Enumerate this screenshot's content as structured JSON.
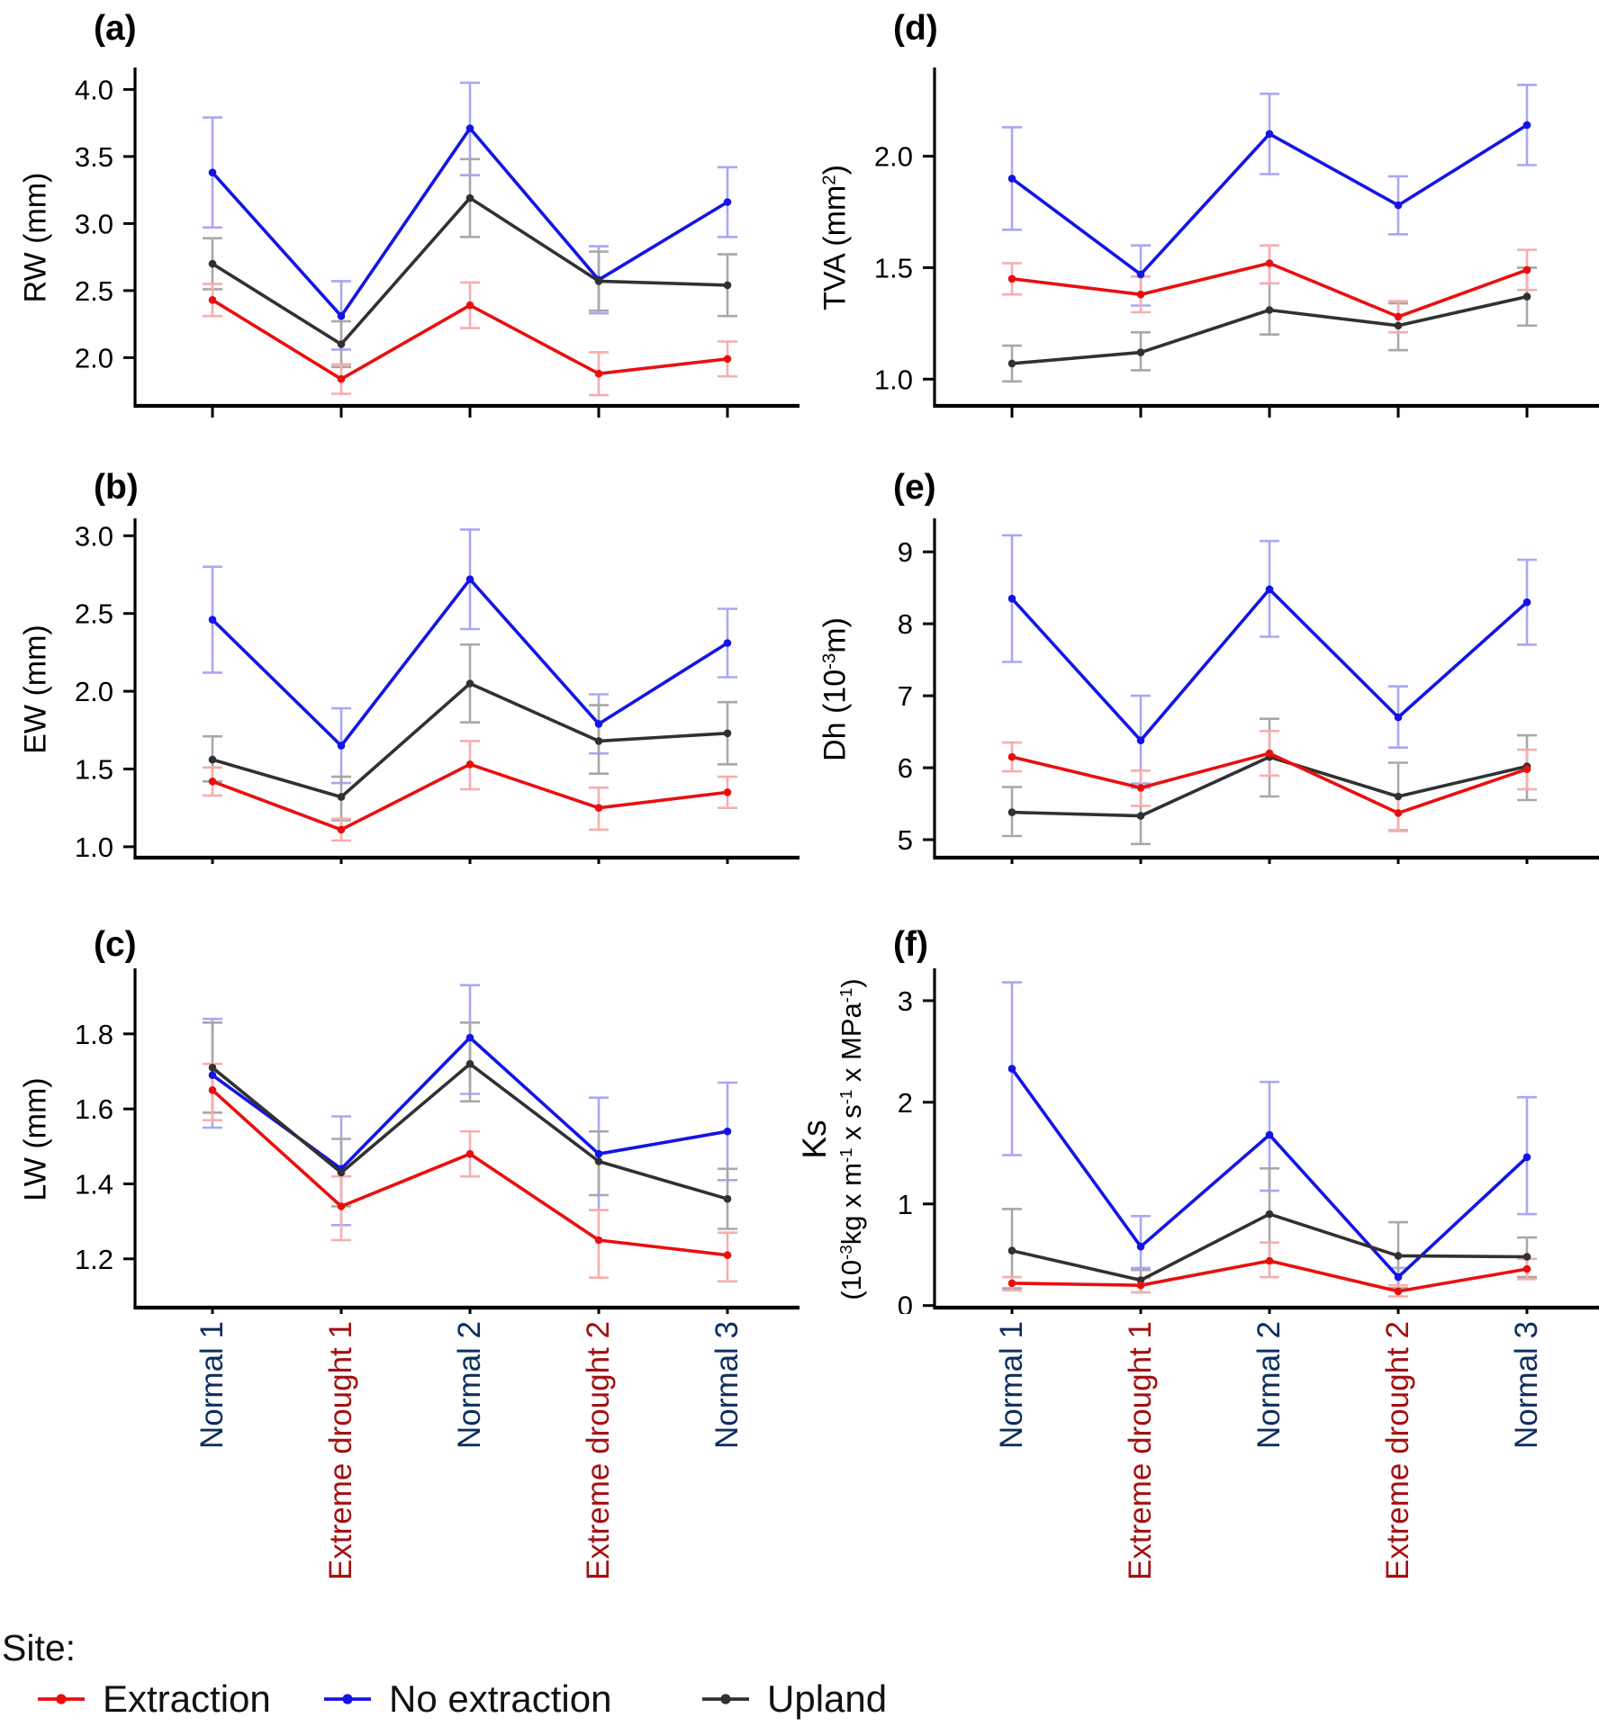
{
  "figure": {
    "site_legend_title": "Site:",
    "legend": [
      {
        "site": "extraction",
        "label": "Extraction"
      },
      {
        "site": "no_extraction",
        "label": "No extraction"
      },
      {
        "site": "upland",
        "label": "Upland"
      }
    ]
  },
  "colors": {
    "sites": {
      "extraction": {
        "line": "#ea0f0f",
        "error": "#f6aeae"
      },
      "no_extraction": {
        "line": "#1414e6",
        "error": "#a8a8f4"
      },
      "upland": {
        "line": "#313131",
        "error": "#a8a8a8"
      }
    },
    "category_label": {
      "normal": "#0e2e5e",
      "drought": "#a31111"
    },
    "axis": "#000000"
  },
  "categories": [
    {
      "label": "Normal 1",
      "type": "normal"
    },
    {
      "label": "Extreme drought 1",
      "type": "drought"
    },
    {
      "label": "Normal 2",
      "type": "normal"
    },
    {
      "label": "Extreme drought 2",
      "type": "drought"
    },
    {
      "label": "Normal 3",
      "type": "normal"
    }
  ],
  "chart_data": [
    {
      "key": "a",
      "panel_label": "(a)",
      "type": "line",
      "ylabel_text": "RW (mm)",
      "ylabel_lines": [
        [
          {
            "t": "RW (mm)"
          }
        ]
      ],
      "ylim": [
        1.64,
        4.15
      ],
      "yticks": [
        {
          "v": 2.0,
          "label": "2.0"
        },
        {
          "v": 2.5,
          "label": "2.5"
        },
        {
          "v": 3.0,
          "label": "3.0"
        },
        {
          "v": 3.5,
          "label": "3.5"
        },
        {
          "v": 4.0,
          "label": "4.0"
        }
      ],
      "series": [
        {
          "site": "extraction",
          "name": "Extraction",
          "values": [
            2.43,
            1.84,
            2.39,
            1.88,
            1.99
          ],
          "err_low": [
            2.31,
            1.73,
            2.22,
            1.72,
            1.86
          ],
          "err_high": [
            2.55,
            1.95,
            2.56,
            2.04,
            2.12
          ]
        },
        {
          "site": "no_extraction",
          "name": "No extraction",
          "values": [
            3.38,
            2.31,
            3.71,
            2.58,
            3.16
          ],
          "err_low": [
            2.97,
            2.06,
            3.36,
            2.33,
            2.9
          ],
          "err_high": [
            3.79,
            2.57,
            4.05,
            2.83,
            3.42
          ]
        },
        {
          "site": "upland",
          "name": "Upland",
          "values": [
            2.7,
            2.1,
            3.19,
            2.57,
            2.54
          ],
          "err_low": [
            2.51,
            1.93,
            2.9,
            2.35,
            2.31
          ],
          "err_high": [
            2.89,
            2.27,
            3.48,
            2.79,
            2.77
          ]
        }
      ]
    },
    {
      "key": "b",
      "panel_label": "(b)",
      "type": "line",
      "ylabel_text": "EW (mm)",
      "ylabel_lines": [
        [
          {
            "t": "EW (mm)"
          }
        ]
      ],
      "ylim": [
        0.93,
        3.1
      ],
      "yticks": [
        {
          "v": 1.0,
          "label": "1.0"
        },
        {
          "v": 1.5,
          "label": "1.5"
        },
        {
          "v": 2.0,
          "label": "2.0"
        },
        {
          "v": 2.5,
          "label": "2.5"
        },
        {
          "v": 3.0,
          "label": "3.0"
        }
      ],
      "series": [
        {
          "site": "extraction",
          "name": "Extraction",
          "values": [
            1.42,
            1.11,
            1.53,
            1.25,
            1.35
          ],
          "err_low": [
            1.33,
            1.04,
            1.37,
            1.11,
            1.25
          ],
          "err_high": [
            1.51,
            1.18,
            1.68,
            1.38,
            1.45
          ]
        },
        {
          "site": "no_extraction",
          "name": "No extraction",
          "values": [
            2.46,
            1.65,
            2.72,
            1.79,
            2.31
          ],
          "err_low": [
            2.12,
            1.41,
            2.4,
            1.6,
            2.09
          ],
          "err_high": [
            2.8,
            1.89,
            3.04,
            1.98,
            2.53
          ]
        },
        {
          "site": "upland",
          "name": "Upland",
          "values": [
            1.56,
            1.32,
            2.05,
            1.68,
            1.73
          ],
          "err_low": [
            1.42,
            1.17,
            1.8,
            1.47,
            1.53
          ],
          "err_high": [
            1.71,
            1.45,
            2.3,
            1.91,
            1.93
          ]
        }
      ]
    },
    {
      "key": "c",
      "panel_label": "(c)",
      "type": "line",
      "ylabel_text": "LW (mm)",
      "ylabel_lines": [
        [
          {
            "t": "LW (mm)"
          }
        ]
      ],
      "ylim": [
        1.07,
        1.97
      ],
      "yticks": [
        {
          "v": 1.2,
          "label": "1.2"
        },
        {
          "v": 1.4,
          "label": "1.4"
        },
        {
          "v": 1.6,
          "label": "1.6"
        },
        {
          "v": 1.8,
          "label": "1.8"
        }
      ],
      "series": [
        {
          "site": "extraction",
          "name": "Extraction",
          "values": [
            1.65,
            1.34,
            1.48,
            1.25,
            1.21
          ],
          "err_low": [
            1.57,
            1.25,
            1.42,
            1.15,
            1.14
          ],
          "err_high": [
            1.72,
            1.42,
            1.54,
            1.33,
            1.27
          ]
        },
        {
          "site": "no_extraction",
          "name": "No extraction",
          "values": [
            1.69,
            1.44,
            1.79,
            1.48,
            1.54
          ],
          "err_low": [
            1.55,
            1.29,
            1.64,
            1.33,
            1.41
          ],
          "err_high": [
            1.84,
            1.58,
            1.93,
            1.63,
            1.67
          ]
        },
        {
          "site": "upland",
          "name": "Upland",
          "values": [
            1.71,
            1.43,
            1.72,
            1.46,
            1.36
          ],
          "err_low": [
            1.59,
            1.34,
            1.62,
            1.37,
            1.28
          ],
          "err_high": [
            1.83,
            1.52,
            1.83,
            1.54,
            1.44
          ]
        }
      ]
    },
    {
      "key": "d",
      "panel_label": "(d)",
      "type": "line",
      "ylabel_text": "TVA (mm2)",
      "ylabel_lines": [
        [
          {
            "t": "TVA (mm"
          },
          {
            "t": "2",
            "sup": true
          },
          {
            "t": ")"
          }
        ]
      ],
      "ylim": [
        0.88,
        2.39
      ],
      "yticks": [
        {
          "v": 1.0,
          "label": "1.0"
        },
        {
          "v": 1.5,
          "label": "1.5"
        },
        {
          "v": 2.0,
          "label": "2.0"
        }
      ],
      "series": [
        {
          "site": "extraction",
          "name": "Extraction",
          "values": [
            1.45,
            1.38,
            1.52,
            1.28,
            1.49
          ],
          "err_low": [
            1.38,
            1.3,
            1.43,
            1.21,
            1.4
          ],
          "err_high": [
            1.52,
            1.46,
            1.6,
            1.35,
            1.58
          ]
        },
        {
          "site": "no_extraction",
          "name": "No extraction",
          "values": [
            1.9,
            1.47,
            2.1,
            1.78,
            2.14
          ],
          "err_low": [
            1.67,
            1.33,
            1.92,
            1.65,
            1.96
          ],
          "err_high": [
            2.13,
            1.6,
            2.28,
            1.91,
            2.32
          ]
        },
        {
          "site": "upland",
          "name": "Upland",
          "values": [
            1.07,
            1.12,
            1.31,
            1.24,
            1.37
          ],
          "err_low": [
            0.99,
            1.04,
            1.2,
            1.13,
            1.24
          ],
          "err_high": [
            1.15,
            1.21,
            1.43,
            1.34,
            1.5
          ]
        }
      ]
    },
    {
      "key": "e",
      "panel_label": "(e)",
      "type": "line",
      "ylabel_text": "Dh (10-3m)",
      "ylabel_lines": [
        [
          {
            "t": "Dh (10"
          },
          {
            "t": "-3",
            "sup": true
          },
          {
            "t": "m)"
          }
        ]
      ],
      "ylim": [
        4.75,
        9.44
      ],
      "yticks": [
        {
          "v": 5,
          "label": "5"
        },
        {
          "v": 6,
          "label": "6"
        },
        {
          "v": 7,
          "label": "7"
        },
        {
          "v": 8,
          "label": "8"
        },
        {
          "v": 9,
          "label": "9"
        }
      ],
      "series": [
        {
          "site": "extraction",
          "name": "Extraction",
          "values": [
            6.15,
            5.72,
            6.2,
            5.37,
            5.98
          ],
          "err_low": [
            5.95,
            5.47,
            5.89,
            5.12,
            5.7
          ],
          "err_high": [
            6.35,
            5.96,
            6.51,
            5.62,
            6.25
          ]
        },
        {
          "site": "no_extraction",
          "name": "No extraction",
          "values": [
            8.35,
            6.38,
            8.48,
            6.7,
            8.3
          ],
          "err_low": [
            7.47,
            5.78,
            7.82,
            6.28,
            7.71
          ],
          "err_high": [
            9.23,
            7.0,
            9.15,
            7.13,
            8.89
          ]
        },
        {
          "site": "upland",
          "name": "Upland",
          "values": [
            5.38,
            5.33,
            6.15,
            5.6,
            6.02
          ],
          "err_low": [
            5.05,
            4.94,
            5.6,
            5.13,
            5.55
          ],
          "err_high": [
            5.73,
            5.72,
            6.68,
            6.07,
            6.45
          ]
        }
      ]
    },
    {
      "key": "f",
      "panel_label": "(f)",
      "type": "line",
      "ylabel_text": "Ks (10-3kg x m-1 x s-1 x MPa-1)",
      "ylabel_lines": [
        [
          {
            "t": "Ks"
          }
        ],
        [
          {
            "t": "(10"
          },
          {
            "t": "-3",
            "sup": true
          },
          {
            "t": "kg x m"
          },
          {
            "t": "-1",
            "sup": true
          },
          {
            "t": " x s"
          },
          {
            "t": "-1",
            "sup": true
          },
          {
            "t": " x MPa"
          },
          {
            "t": "-1",
            "sup": true
          },
          {
            "t": ")"
          }
        ]
      ],
      "ylim": [
        -0.02,
        3.3
      ],
      "yticks": [
        {
          "v": 0,
          "label": "0"
        },
        {
          "v": 1,
          "label": "1"
        },
        {
          "v": 2,
          "label": "2"
        },
        {
          "v": 3,
          "label": "3"
        }
      ],
      "series": [
        {
          "site": "extraction",
          "name": "Extraction",
          "values": [
            0.22,
            0.2,
            0.44,
            0.14,
            0.36
          ],
          "err_low": [
            0.15,
            0.13,
            0.28,
            0.09,
            0.26
          ],
          "err_high": [
            0.28,
            0.27,
            0.62,
            0.2,
            0.46
          ]
        },
        {
          "site": "no_extraction",
          "name": "No extraction",
          "values": [
            2.33,
            0.58,
            1.68,
            0.28,
            1.46
          ],
          "err_low": [
            1.48,
            0.37,
            1.13,
            0.17,
            0.9
          ],
          "err_high": [
            3.18,
            0.88,
            2.2,
            0.37,
            2.05
          ]
        },
        {
          "site": "upland",
          "name": "Upland",
          "values": [
            0.54,
            0.25,
            0.9,
            0.49,
            0.48
          ],
          "err_low": [
            0.17,
            0.13,
            0.42,
            0.17,
            0.28
          ],
          "err_high": [
            0.95,
            0.35,
            1.35,
            0.82,
            0.67
          ]
        }
      ]
    }
  ]
}
